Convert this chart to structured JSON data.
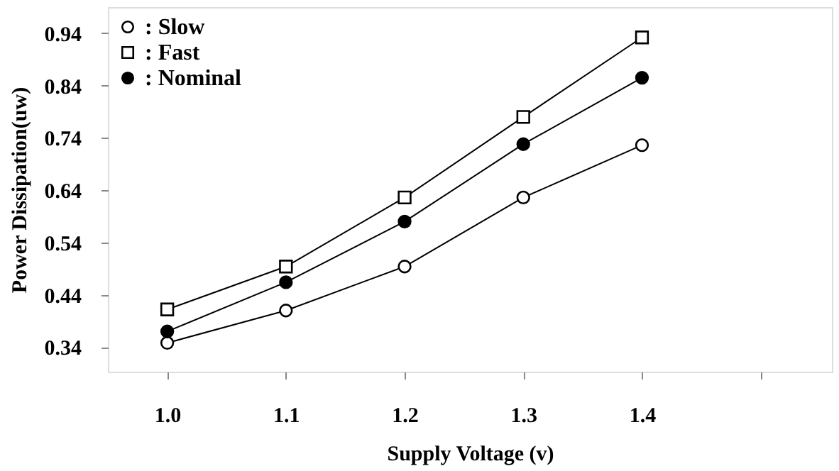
{
  "chart_data": {
    "type": "line",
    "xlabel": "Supply Voltage (v)",
    "ylabel": "Power  Dissipation(uw)",
    "x": [
      1.0,
      1.1,
      1.2,
      1.3,
      1.4
    ],
    "series": [
      {
        "name": ": Slow",
        "color": "#000000",
        "marker": "circle",
        "values": [
          0.348,
          0.41,
          0.494,
          0.626,
          0.726
        ]
      },
      {
        "name": ": Fast",
        "color": "#000000",
        "marker": "square",
        "values": [
          0.412,
          0.494,
          0.626,
          0.78,
          0.932
        ]
      },
      {
        "name": ": Nominal",
        "color": "#000000",
        "marker": "circle",
        "values": [
          0.37,
          0.464,
          0.58,
          0.728,
          0.855
        ]
      }
    ],
    "xlim": [
      0.95,
      1.56
    ],
    "ylim": [
      0.293,
      0.99
    ],
    "xticks": [
      {
        "value": 1.0,
        "label": "1.0"
      },
      {
        "value": 1.1,
        "label": "1.1"
      },
      {
        "value": 1.2,
        "label": "1.2"
      },
      {
        "value": 1.3,
        "label": "1.3"
      },
      {
        "value": 1.4,
        "label": "1.4"
      },
      {
        "value": 1.5,
        "label": null
      }
    ],
    "yticks": [
      0.34,
      0.44,
      0.54,
      0.64,
      0.74,
      0.84,
      0.94
    ],
    "grid": false,
    "legend": "top left",
    "line_style": "solid"
  }
}
